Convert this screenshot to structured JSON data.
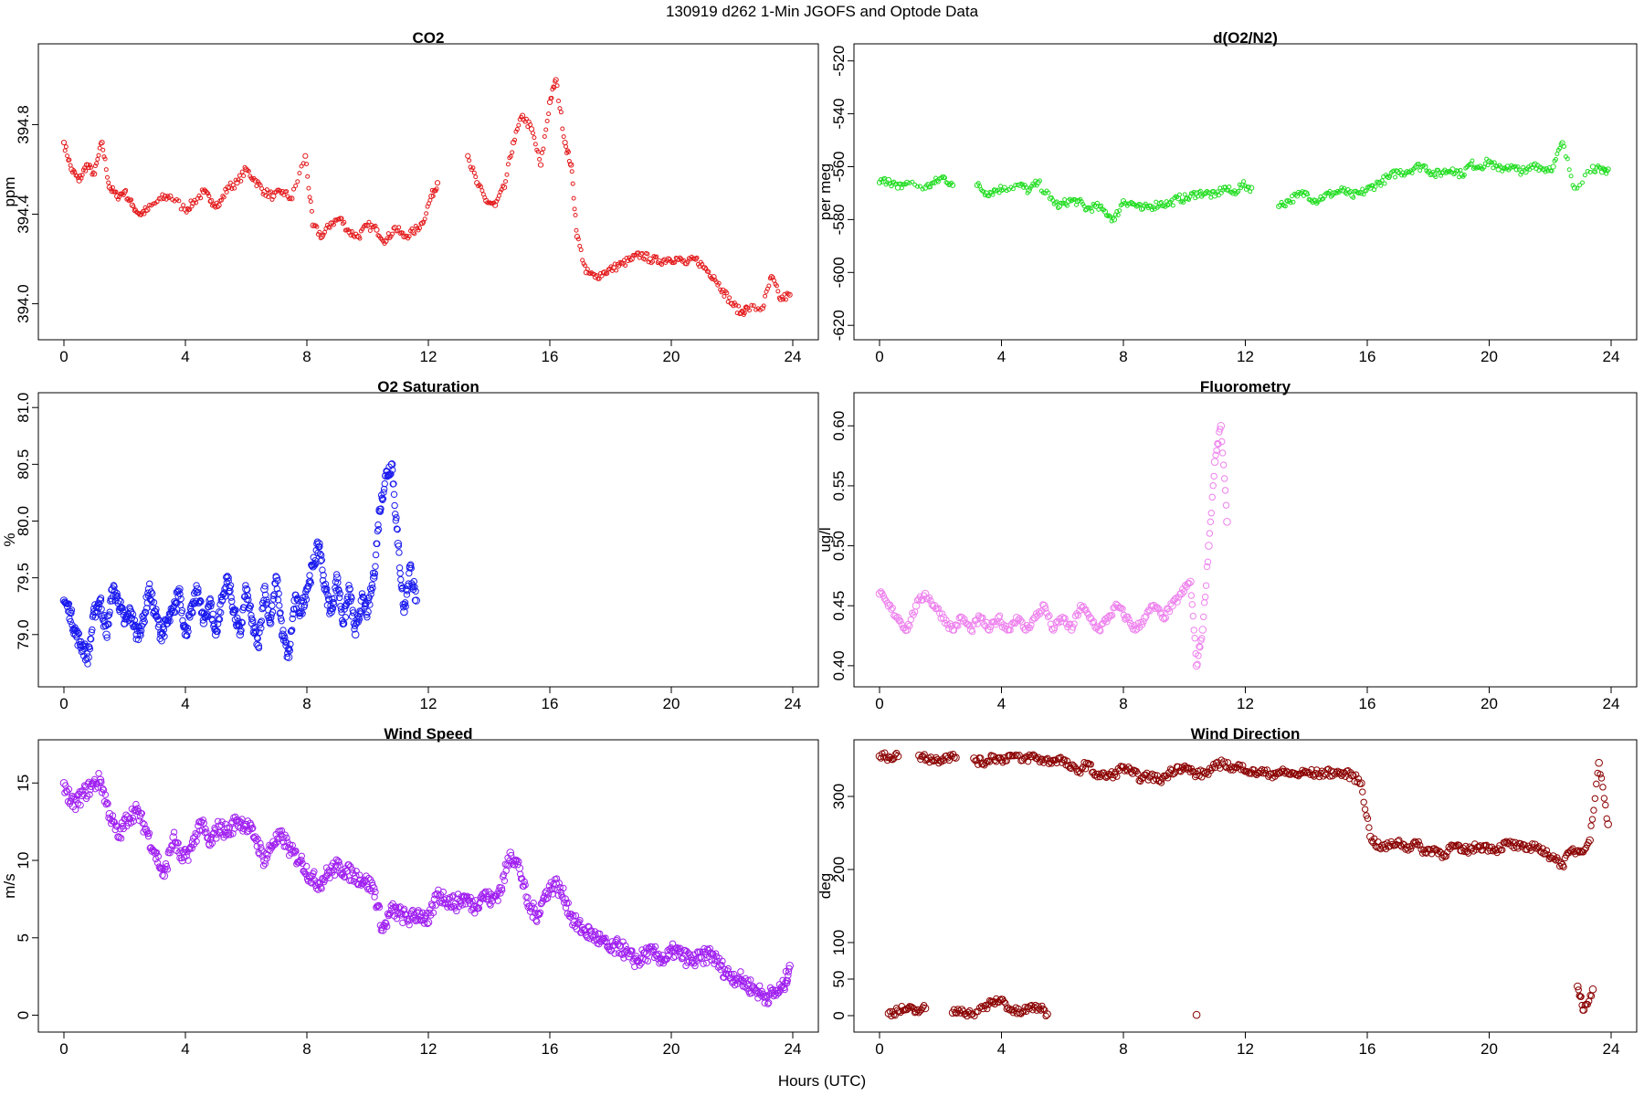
{
  "figure": {
    "suptitle": "130919   d262   1-Min  JGOFS and Optode Data",
    "xlabel": "Hours (UTC)"
  },
  "chart_data": [
    {
      "type": "scatter",
      "title": "CO2",
      "ylabel": "ppm",
      "color": "#e41a1c",
      "xlim": [
        0,
        24
      ],
      "ylim": [
        393.88,
        395.12
      ],
      "xticks": [
        0,
        4,
        8,
        12,
        16,
        20,
        24
      ],
      "yticks": [
        394.0,
        394.4,
        394.8
      ],
      "ytick_labels": [
        "394.0",
        "394.4",
        "394.8"
      ],
      "series": [
        {
          "x": [
            0.0,
            0.25,
            0.5,
            0.75,
            1.0,
            1.25,
            1.5,
            1.75,
            2.0,
            2.25,
            2.5,
            2.75,
            3.2,
            3.5,
            4.0,
            4.25,
            4.6,
            4.85,
            5.1,
            5.4,
            5.7,
            6.0,
            6.3,
            6.6,
            6.9,
            7.2,
            7.5,
            7.95,
            8.2,
            8.5,
            8.8,
            9.1,
            9.4,
            9.7,
            10.0,
            10.3,
            10.6,
            10.9,
            11.2,
            11.5,
            11.8,
            12.1,
            12.3,
            13.3,
            13.6,
            13.9,
            14.2,
            14.5,
            14.8,
            15.1,
            15.4,
            15.7,
            16.0,
            16.2,
            16.5,
            16.7,
            16.9,
            17.2,
            17.5,
            17.8,
            18.1,
            18.4,
            18.7,
            19.0,
            19.3,
            19.6,
            19.9,
            20.2,
            20.5,
            20.8,
            21.1,
            21.4,
            21.7,
            22.0,
            22.3,
            22.5,
            23.0,
            23.3,
            23.6,
            23.9
          ],
          "y": [
            394.72,
            394.6,
            394.55,
            394.62,
            394.58,
            394.72,
            394.52,
            394.48,
            394.5,
            394.44,
            394.4,
            394.42,
            394.47,
            394.48,
            394.42,
            394.45,
            394.5,
            394.46,
            394.44,
            394.52,
            394.54,
            394.6,
            394.55,
            394.5,
            394.48,
            394.5,
            394.47,
            394.66,
            394.35,
            394.3,
            394.36,
            394.38,
            394.32,
            394.3,
            394.35,
            394.33,
            394.28,
            394.34,
            394.3,
            394.32,
            394.36,
            394.48,
            394.54,
            394.66,
            394.54,
            394.46,
            394.44,
            394.52,
            394.72,
            394.84,
            394.78,
            394.62,
            394.9,
            395.0,
            394.72,
            394.62,
            394.3,
            394.14,
            394.12,
            394.14,
            394.16,
            394.18,
            394.2,
            394.22,
            394.2,
            394.19,
            394.2,
            394.2,
            394.18,
            394.2,
            394.16,
            394.12,
            394.06,
            394.0,
            393.96,
            393.98,
            393.98,
            394.12,
            394.02,
            394.04
          ]
        }
      ]
    },
    {
      "type": "scatter",
      "title": "d(O2/N2)",
      "ylabel": "per meg",
      "color": "#22dd22",
      "xlim": [
        0,
        24
      ],
      "ylim": [
        -622,
        -517
      ],
      "xticks": [
        0,
        4,
        8,
        12,
        16,
        20,
        24
      ],
      "yticks": [
        -620,
        -600,
        -580,
        -560,
        -540,
        -520
      ],
      "ytick_labels": [
        "-620",
        "-600",
        "-580",
        "-560",
        "-540",
        "-520"
      ],
      "series": [
        {
          "x": [
            0.0,
            0.3,
            0.6,
            0.9,
            1.5,
            1.8,
            2.1,
            2.4,
            3.2,
            3.5,
            3.8,
            4.1,
            4.6,
            4.9,
            5.2,
            5.6,
            5.9,
            6.2,
            6.5,
            6.8,
            7.1,
            7.4,
            7.7,
            8.0,
            8.3,
            8.6,
            8.9,
            9.2,
            9.5,
            9.8,
            10.1,
            10.4,
            10.7,
            11.0,
            11.3,
            11.6,
            11.9,
            12.2,
            13.1,
            13.4,
            13.7,
            14.0,
            14.3,
            14.6,
            14.9,
            15.2,
            15.5,
            15.8,
            16.1,
            16.4,
            16.7,
            17.0,
            17.3,
            17.6,
            17.9,
            18.2,
            18.5,
            18.8,
            19.1,
            19.4,
            19.7,
            20.0,
            20.3,
            20.6,
            20.9,
            21.2,
            21.5,
            21.8,
            22.1,
            22.4,
            22.8,
            23.4,
            23.7,
            23.9
          ],
          "y": [
            -566,
            -565,
            -568,
            -566,
            -568,
            -566,
            -564,
            -567,
            -567,
            -570,
            -569,
            -568,
            -567,
            -569,
            -566,
            -572,
            -575,
            -573,
            -573,
            -576,
            -575,
            -577,
            -580,
            -573,
            -574,
            -576,
            -575,
            -574,
            -574,
            -572,
            -572,
            -570,
            -570,
            -571,
            -568,
            -570,
            -567,
            -568,
            -575,
            -573,
            -571,
            -570,
            -573,
            -571,
            -570,
            -569,
            -571,
            -570,
            -568,
            -566,
            -564,
            -562,
            -562,
            -560,
            -560,
            -563,
            -562,
            -561,
            -563,
            -559,
            -560,
            -558,
            -561,
            -560,
            -561,
            -562,
            -559,
            -561,
            -560,
            -551,
            -568,
            -560,
            -562,
            -561
          ]
        }
      ]
    },
    {
      "type": "scatter",
      "title": "O2 Saturation",
      "ylabel": "%",
      "color": "#1a1aee",
      "xlim": [
        0,
        24
      ],
      "ylim": [
        78.62,
        81.05
      ],
      "xticks": [
        0,
        4,
        8,
        12,
        16,
        20,
        24
      ],
      "yticks": [
        79.0,
        79.5,
        80.0,
        80.5,
        81.0
      ],
      "ytick_labels": [
        "79.0",
        "79.5",
        "80.0",
        "80.5",
        "81.0"
      ],
      "series": [
        {
          "x": [
            0.0,
            0.2,
            0.4,
            0.6,
            0.8,
            1.0,
            1.2,
            1.4,
            1.6,
            1.8,
            2.0,
            2.2,
            2.4,
            2.6,
            2.8,
            3.0,
            3.2,
            3.4,
            3.6,
            3.8,
            4.0,
            4.2,
            4.4,
            4.6,
            4.8,
            5.0,
            5.2,
            5.4,
            5.6,
            5.8,
            6.0,
            6.2,
            6.4,
            6.6,
            6.8,
            7.0,
            7.2,
            7.4,
            7.6,
            7.8,
            8.0,
            8.2,
            8.4,
            8.6,
            8.8,
            9.0,
            9.2,
            9.4,
            9.6,
            9.8,
            10.0,
            10.2,
            10.4,
            10.6,
            10.8,
            11.0,
            11.2,
            11.4,
            11.6
          ],
          "y": [
            79.3,
            79.2,
            79.0,
            78.9,
            78.8,
            79.2,
            79.3,
            79.0,
            79.4,
            79.3,
            79.1,
            79.2,
            79.0,
            79.1,
            79.4,
            79.2,
            79.0,
            79.1,
            79.2,
            79.4,
            79.0,
            79.2,
            79.4,
            79.1,
            79.3,
            79.0,
            79.3,
            79.5,
            79.2,
            79.0,
            79.4,
            79.1,
            78.9,
            79.4,
            79.1,
            79.5,
            79.0,
            78.8,
            79.3,
            79.2,
            79.4,
            79.6,
            79.8,
            79.4,
            79.2,
            79.5,
            79.1,
            79.4,
            79.0,
            79.3,
            79.2,
            79.5,
            80.1,
            80.4,
            80.5,
            79.8,
            79.2,
            79.6,
            79.3
          ]
        }
      ]
    },
    {
      "type": "scatter",
      "title": "Fluorometry",
      "ylabel": "ug/l",
      "color": "#ee82ee",
      "xlim": [
        0,
        24
      ],
      "ylim": [
        0.39,
        0.62
      ],
      "xticks": [
        0,
        4,
        8,
        12,
        16,
        20,
        24
      ],
      "yticks": [
        0.4,
        0.45,
        0.5,
        0.55,
        0.6
      ],
      "ytick_labels": [
        "0.40",
        "0.45",
        "0.50",
        "0.55",
        "0.60"
      ],
      "series": [
        {
          "x": [
            0.0,
            0.3,
            0.6,
            0.9,
            1.2,
            1.5,
            1.8,
            2.1,
            2.4,
            2.7,
            3.0,
            3.3,
            3.6,
            3.9,
            4.2,
            4.5,
            4.8,
            5.1,
            5.4,
            5.7,
            6.0,
            6.3,
            6.6,
            6.9,
            7.2,
            7.5,
            7.8,
            8.1,
            8.4,
            8.7,
            9.0,
            9.3,
            9.6,
            9.9,
            10.2,
            10.4,
            10.6,
            10.8,
            11.0,
            11.2,
            11.4
          ],
          "y": [
            0.46,
            0.45,
            0.44,
            0.43,
            0.45,
            0.46,
            0.45,
            0.44,
            0.43,
            0.44,
            0.43,
            0.44,
            0.43,
            0.44,
            0.43,
            0.44,
            0.43,
            0.44,
            0.45,
            0.43,
            0.44,
            0.43,
            0.45,
            0.44,
            0.43,
            0.44,
            0.45,
            0.44,
            0.43,
            0.44,
            0.45,
            0.44,
            0.45,
            0.46,
            0.47,
            0.4,
            0.43,
            0.5,
            0.57,
            0.6,
            0.52
          ]
        }
      ]
    },
    {
      "type": "scatter",
      "title": "Wind Speed",
      "ylabel": "m/s",
      "color": "#a020f0",
      "xlim": [
        0,
        24
      ],
      "ylim": [
        -0.5,
        17.2
      ],
      "xticks": [
        0,
        4,
        8,
        12,
        16,
        20,
        24
      ],
      "yticks": [
        0,
        5,
        10,
        15
      ],
      "ytick_labels": [
        "0",
        "5",
        "10",
        "15"
      ],
      "series": [
        {
          "x": [
            0.0,
            0.3,
            0.6,
            0.9,
            1.2,
            1.5,
            1.8,
            2.1,
            2.4,
            2.7,
            3.0,
            3.3,
            3.6,
            3.9,
            4.2,
            4.5,
            4.8,
            5.1,
            5.4,
            5.7,
            6.0,
            6.3,
            6.6,
            6.9,
            7.2,
            7.5,
            7.8,
            8.1,
            8.4,
            8.7,
            9.0,
            9.3,
            9.6,
            9.9,
            10.2,
            10.5,
            10.8,
            11.1,
            11.4,
            11.7,
            12.0,
            12.3,
            12.6,
            12.9,
            13.2,
            13.5,
            13.8,
            14.1,
            14.4,
            14.7,
            15.0,
            15.3,
            15.6,
            15.9,
            16.2,
            16.5,
            16.8,
            17.1,
            17.4,
            17.7,
            18.0,
            18.3,
            18.6,
            18.9,
            19.2,
            19.5,
            19.8,
            20.1,
            20.4,
            20.7,
            21.0,
            21.3,
            21.6,
            21.9,
            22.2,
            22.5,
            22.8,
            23.1,
            23.4,
            23.7,
            23.9
          ],
          "y": [
            15.0,
            13.5,
            14.2,
            14.8,
            15.2,
            13.0,
            11.5,
            12.8,
            13.2,
            12.0,
            10.5,
            9.0,
            11.5,
            10.0,
            10.8,
            12.5,
            11.0,
            12.2,
            11.8,
            12.6,
            12.3,
            11.5,
            10.0,
            11.2,
            11.5,
            10.5,
            10.0,
            9.0,
            8.5,
            9.2,
            9.6,
            9.3,
            9.0,
            8.7,
            8.2,
            5.5,
            6.8,
            6.5,
            6.2,
            6.6,
            6.0,
            7.8,
            7.5,
            7.2,
            7.6,
            7.0,
            7.8,
            7.4,
            8.2,
            10.5,
            9.5,
            7.0,
            6.5,
            8.0,
            8.5,
            7.5,
            6.0,
            5.5,
            5.2,
            4.8,
            4.2,
            4.5,
            3.8,
            3.5,
            4.0,
            3.9,
            3.6,
            4.2,
            3.8,
            3.5,
            3.7,
            4.0,
            3.2,
            2.6,
            2.4,
            2.0,
            1.6,
            1.2,
            1.4,
            1.8,
            3.2
          ]
        }
      ]
    },
    {
      "type": "scatter",
      "title": "Wind Direction",
      "ylabel": "deg",
      "color": "#8b0000",
      "xlim": [
        0,
        24
      ],
      "ylim": [
        -10,
        365
      ],
      "xticks": [
        0,
        4,
        8,
        12,
        16,
        20,
        24
      ],
      "yticks": [
        0,
        50,
        100,
        200,
        300
      ],
      "ytick_labels": [
        "0",
        "50",
        "100",
        "200",
        "300"
      ],
      "series": [
        {
          "x": [
            0.0,
            0.3,
            0.6,
            1.3,
            1.6,
            1.9,
            2.2,
            2.5,
            3.1,
            3.4,
            3.7,
            4.0,
            4.3,
            4.7,
            5.0,
            5.3,
            5.6,
            5.9,
            6.2,
            6.5,
            6.8,
            7.1,
            7.4,
            7.7,
            8.0,
            8.3,
            8.6,
            8.9,
            9.2,
            9.5,
            9.8,
            10.1,
            10.4,
            10.7,
            11.0,
            11.3,
            11.6,
            11.9,
            12.2,
            12.5,
            12.8,
            13.1,
            13.4,
            13.7,
            14.0,
            14.3,
            14.6,
            14.9,
            15.2,
            15.5,
            15.8,
            16.1,
            16.4,
            16.7,
            17.0,
            17.3,
            17.6,
            17.9,
            18.2,
            18.5,
            18.8,
            19.1,
            19.4,
            19.7,
            20.0,
            20.3,
            20.6,
            20.9,
            21.2,
            21.5,
            21.8,
            22.1,
            22.4,
            22.7,
            23.0,
            23.3,
            23.6,
            23.9
          ],
          "y": [
            355,
            354,
            355,
            356,
            352,
            350,
            355,
            353,
            352,
            345,
            355,
            350,
            356,
            350,
            355,
            350,
            348,
            352,
            342,
            334,
            345,
            330,
            328,
            330,
            340,
            332,
            325,
            328,
            322,
            332,
            340,
            338,
            330,
            332,
            340,
            347,
            337,
            342,
            332,
            334,
            330,
            333,
            332,
            330,
            333,
            331,
            332,
            333,
            331,
            329,
            318,
            245,
            230,
            232,
            238,
            230,
            236,
            224,
            228,
            220,
            232,
            226,
            228,
            232,
            230,
            228,
            236,
            232,
            228,
            234,
            222,
            218,
            206,
            226,
            225,
            240,
            346,
            262
          ]
        },
        {
          "x": [
            0.3,
            0.6,
            0.9,
            1.2,
            1.5,
            2.4,
            2.7,
            3.0,
            3.4,
            3.7,
            4.0,
            4.3,
            4.6,
            4.9,
            5.2,
            5.5,
            10.4,
            22.9,
            23.1,
            23.4
          ],
          "y": [
            3,
            7,
            9,
            6,
            10,
            4,
            8,
            2,
            10,
            18,
            22,
            8,
            4,
            10,
            12,
            2,
            1,
            40,
            8,
            36
          ]
        }
      ]
    }
  ]
}
